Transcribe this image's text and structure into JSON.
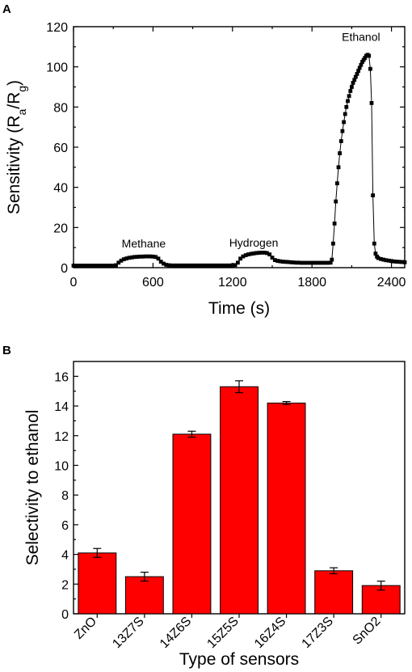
{
  "chart_data": [
    {
      "panel": "A",
      "type": "scatter",
      "mode": "line+markers",
      "xlabel": "Time (s)",
      "ylabel_main": "Sensitivity (R",
      "ylabel_sub_a": "a",
      "ylabel_mid": "/R",
      "ylabel_sub_g": "g",
      "ylabel_end": ")",
      "xlim": [
        0,
        2500
      ],
      "ylim": [
        0,
        120
      ],
      "xticks": [
        0,
        600,
        1200,
        1800,
        2400
      ],
      "xtick_labels": [
        "0",
        "600",
        "1200",
        "1800",
        "2400"
      ],
      "yticks": [
        0,
        20,
        40,
        60,
        80,
        100,
        120
      ],
      "ytick_labels": [
        "0",
        "20",
        "40",
        "60",
        "80",
        "100",
        "120"
      ],
      "annotations": [
        {
          "text": "Methane",
          "x": 530,
          "y": 10
        },
        {
          "text": "Hydrogen",
          "x": 1360,
          "y": 10.5
        },
        {
          "text": "Ethanol",
          "x": 2170,
          "y": 113
        }
      ],
      "series": [
        {
          "color": "#000000",
          "marker": "square",
          "x": [
            0,
            20,
            40,
            60,
            80,
            100,
            120,
            140,
            160,
            180,
            200,
            220,
            240,
            260,
            280,
            300,
            320,
            340,
            360,
            380,
            400,
            420,
            440,
            460,
            480,
            500,
            520,
            540,
            560,
            580,
            600,
            620,
            640,
            660,
            680,
            700,
            720,
            740,
            760,
            780,
            800,
            820,
            840,
            860,
            880,
            900,
            920,
            940,
            960,
            980,
            1000,
            1020,
            1040,
            1060,
            1080,
            1100,
            1120,
            1140,
            1160,
            1180,
            1200,
            1220,
            1240,
            1260,
            1280,
            1300,
            1320,
            1340,
            1360,
            1380,
            1400,
            1420,
            1440,
            1460,
            1480,
            1500,
            1520,
            1540,
            1560,
            1580,
            1600,
            1620,
            1640,
            1660,
            1680,
            1700,
            1720,
            1740,
            1760,
            1780,
            1800,
            1820,
            1840,
            1860,
            1880,
            1900,
            1920,
            1940,
            1950,
            1960,
            1970,
            1980,
            1990,
            2000,
            2010,
            2020,
            2030,
            2040,
            2050,
            2060,
            2070,
            2080,
            2090,
            2100,
            2110,
            2120,
            2130,
            2140,
            2150,
            2160,
            2170,
            2180,
            2190,
            2200,
            2210,
            2220,
            2230,
            2240,
            2250,
            2260,
            2270,
            2280,
            2290,
            2300,
            2320,
            2340,
            2360,
            2380,
            2400,
            2420,
            2440,
            2460,
            2480,
            2500
          ],
          "y": [
            1.0,
            1.0,
            1.0,
            1.0,
            1.0,
            1.0,
            1.0,
            1.0,
            1.0,
            1.0,
            1.0,
            1.0,
            1.0,
            1.0,
            1.0,
            1.0,
            1.2,
            2.5,
            3.5,
            4.2,
            4.6,
            4.9,
            5.1,
            5.3,
            5.4,
            5.5,
            5.5,
            5.6,
            5.6,
            5.6,
            5.5,
            5.3,
            4.5,
            3.0,
            2.0,
            1.4,
            1.2,
            1.1,
            1.1,
            1.1,
            1.1,
            1.1,
            1.1,
            1.1,
            1.1,
            1.1,
            1.1,
            1.1,
            1.1,
            1.1,
            1.1,
            1.1,
            1.1,
            1.1,
            1.1,
            1.1,
            1.1,
            1.1,
            1.1,
            1.1,
            1.2,
            1.3,
            2.5,
            4.5,
            5.6,
            6.2,
            6.6,
            6.9,
            7.1,
            7.3,
            7.4,
            7.5,
            7.5,
            7.3,
            6.6,
            5.0,
            3.8,
            3.4,
            3.2,
            3.0,
            2.9,
            2.8,
            2.7,
            2.6,
            2.5,
            2.5,
            2.4,
            2.4,
            2.4,
            2.4,
            2.4,
            2.4,
            2.4,
            2.4,
            2.4,
            2.4,
            2.4,
            2.5,
            4.0,
            12.0,
            22.0,
            33.0,
            42.0,
            50.0,
            57.0,
            63.0,
            68.0,
            72.5,
            76.5,
            80.0,
            83.0,
            85.5,
            88.0,
            90.0,
            92.0,
            93.5,
            95.0,
            96.5,
            98.0,
            99.5,
            101.0,
            102.5,
            103.5,
            104.5,
            105.5,
            106.0,
            105.5,
            99.0,
            82.0,
            36.0,
            12.0,
            7.0,
            5.5,
            4.8,
            4.3,
            4.0,
            3.7,
            3.5,
            3.3,
            3.1,
            3.0,
            2.9,
            2.8,
            2.7
          ]
        }
      ]
    },
    {
      "panel": "B",
      "type": "bar",
      "xlabel": "Type of sensors",
      "ylabel": "Selectivity to ethanol",
      "ylim": [
        0,
        17
      ],
      "yticks": [
        0,
        2,
        4,
        6,
        8,
        10,
        12,
        14,
        16
      ],
      "ytick_labels": [
        "0",
        "2",
        "4",
        "6",
        "8",
        "10",
        "12",
        "14",
        "16"
      ],
      "bar_color": "#ff0000",
      "categories": [
        "ZnO",
        "13Z7S",
        "14Z6S",
        "15Z5S",
        "16Z4S",
        "17Z3S",
        "SnO2"
      ],
      "values": [
        4.1,
        2.5,
        12.1,
        15.3,
        14.2,
        2.9,
        1.9
      ],
      "errors": [
        0.3,
        0.3,
        0.2,
        0.4,
        0.1,
        0.2,
        0.3
      ]
    }
  ]
}
